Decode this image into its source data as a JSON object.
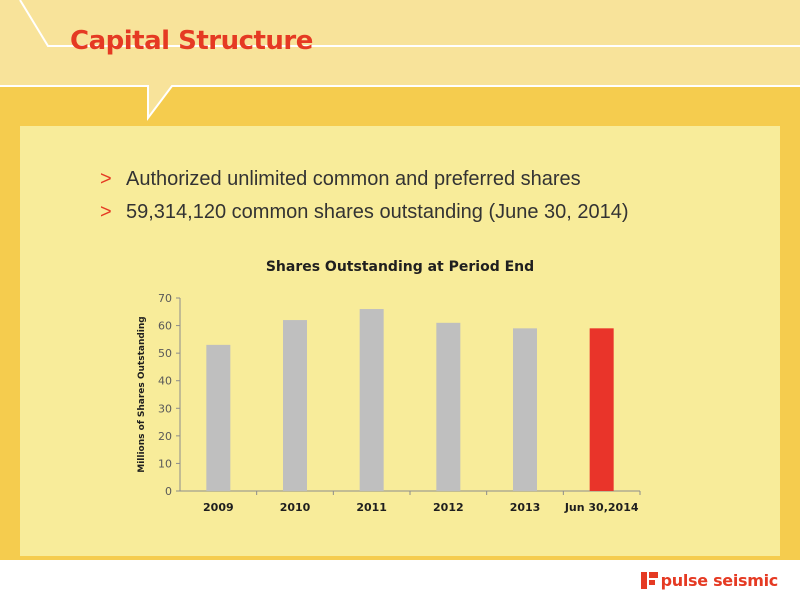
{
  "slide": {
    "title": "Capital Structure",
    "bullets": [
      "Authorized unlimited common and preferred shares",
      "59,314,120 common shares outstanding (June 30, 2014)"
    ],
    "bullet_marker": ">"
  },
  "logo": {
    "text": "pulse seismic",
    "icon": "pulse-seismic-logo-icon"
  },
  "colors": {
    "background": "#f5cc4e",
    "panel": "#f8ec9a",
    "accent": "#e53a23",
    "bar_default": "#bfbfbf",
    "bar_highlight": "#e9342a"
  },
  "chart_data": {
    "type": "bar",
    "title": "Shares Outstanding at Period End",
    "xlabel": "",
    "ylabel": "Millions of Shares Outstanding",
    "categories": [
      "2009",
      "2010",
      "2011",
      "2012",
      "2013",
      "Jun 30,2014"
    ],
    "values": [
      53,
      62,
      66,
      61,
      59,
      59
    ],
    "highlight_index": 5,
    "ylim": [
      0,
      70
    ],
    "yticks": [
      0,
      10,
      20,
      30,
      40,
      50,
      60,
      70
    ],
    "grid": false,
    "legend": "none"
  }
}
